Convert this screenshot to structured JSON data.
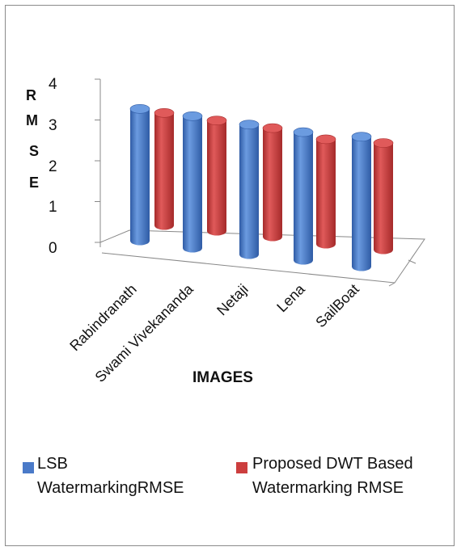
{
  "chart_data": {
    "type": "bar",
    "style": "3d-cylinder",
    "categories": [
      "Rabindranath",
      "Swami Vivekananda",
      "Netaji",
      "Lena",
      "SailBoat"
    ],
    "series": [
      {
        "name": "LSB WatermarkingRMSE",
        "color": "#4a7ac8",
        "values": [
          3.4,
          3.4,
          3.35,
          3.3,
          3.35
        ]
      },
      {
        "name": "Proposed DWT  Based Watermarking RMSE",
        "color": "#cc3e3e",
        "values": [
          2.9,
          2.85,
          2.8,
          2.7,
          2.75
        ]
      }
    ],
    "xlabel": "IMAGES",
    "ylabel": [
      "R",
      "M",
      "S",
      "E"
    ],
    "yticks": [
      "0",
      "1",
      "2",
      "3",
      "4"
    ],
    "ylim": [
      0,
      4
    ],
    "legend_position": "bottom"
  }
}
